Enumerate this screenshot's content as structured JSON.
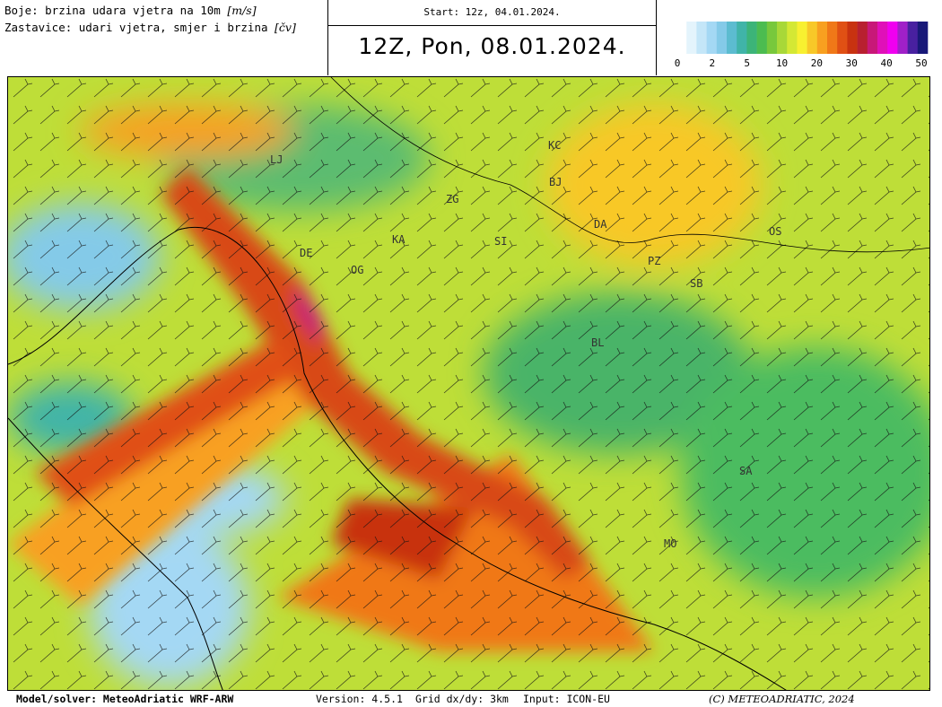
{
  "header": {
    "legend_line1": "Boje: brzina udara vjetra na 10m",
    "legend_line1_unit": "[m/s]",
    "legend_line2": "Zastavice: udari vjetra, smjer i brzina",
    "legend_line2_unit": "[čv]",
    "start": "Start: 12z, 04.01.2024.",
    "title": "12Z, Pon, 08.01.2024."
  },
  "colorbar": {
    "colors": [
      "#ffffff",
      "#e4f4fc",
      "#c4e6f8",
      "#a4d8f4",
      "#84cae8",
      "#5cbcd0",
      "#40b4a8",
      "#3cb478",
      "#4cbc50",
      "#78c83c",
      "#a8d838",
      "#d4e834",
      "#f8f030",
      "#f8c828",
      "#f8a020",
      "#f07818",
      "#e05014",
      "#c83210",
      "#b82030",
      "#c81878",
      "#e010b8",
      "#f000f0",
      "#a020c8",
      "#4820a0",
      "#181878"
    ],
    "ticks": [
      0,
      2,
      5,
      10,
      20,
      30,
      40,
      50
    ]
  },
  "map": {
    "labels": [
      "LJ",
      "ZG",
      "KC",
      "BJ",
      "DA",
      "KA",
      "SI",
      "OS",
      "PZ",
      "SB",
      "DE",
      "OG",
      "BL",
      "SA",
      "MO"
    ]
  },
  "footer": {
    "model": "Model/solver: MeteoAdriatic WRF-ARW",
    "version": "Version: 4.5.1",
    "grid": "Grid dx/dy: 3km",
    "input": "Input: ICON-EU",
    "copyright": "(C) METEOADRIATIC, 2024"
  }
}
